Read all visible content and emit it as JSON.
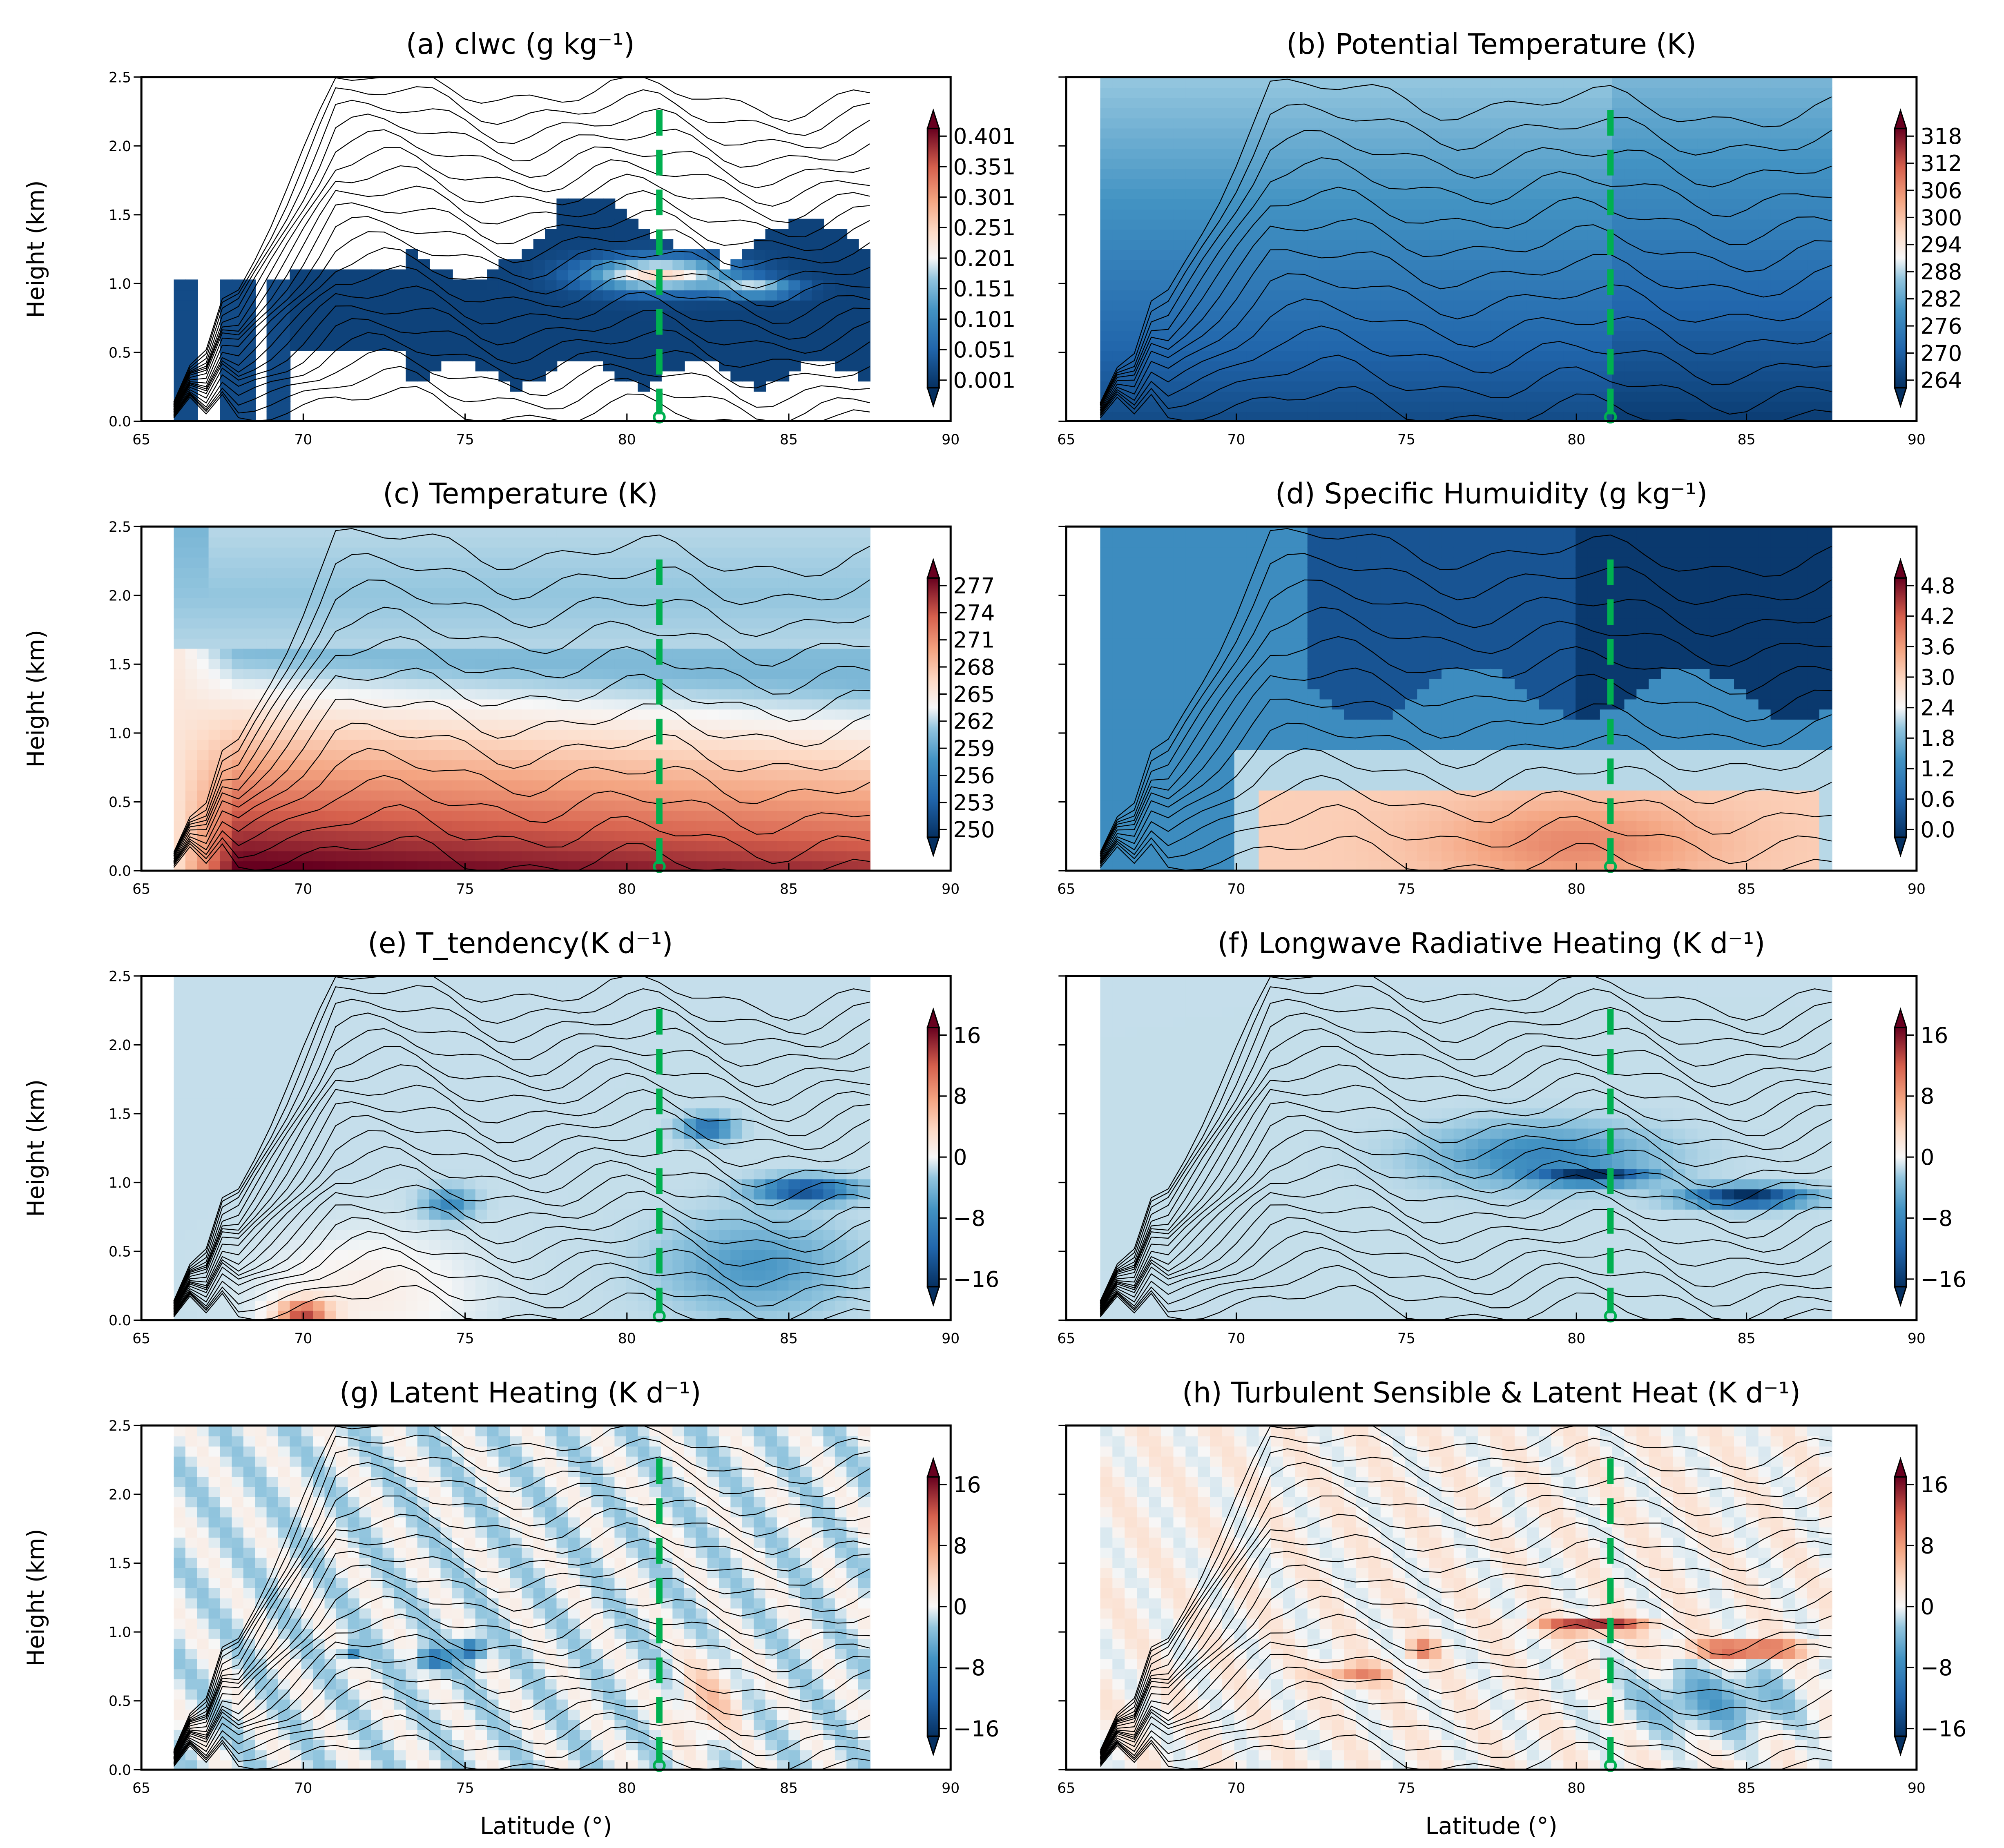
{
  "chart_data": [
    {
      "id": "a",
      "type": "heatmap",
      "title": "(a) clwc (g kg⁻¹)",
      "xlabel": "",
      "ylabel": "Height (km)",
      "xlim": [
        65,
        90
      ],
      "ylim": [
        0,
        2.5
      ],
      "xticks": [
        "65",
        "70",
        "75",
        "80",
        "85",
        "90"
      ],
      "yticks": [
        "0.0",
        "0.5",
        "1.0",
        "1.5",
        "2.0",
        "2.5"
      ],
      "colorbar_ticks": [
        "0.401",
        "0.351",
        "0.301",
        "0.251",
        "0.201",
        "0.151",
        "0.101",
        "0.051",
        "0.001"
      ],
      "field": "clwc",
      "marker_latitude": 81
    },
    {
      "id": "b",
      "type": "heatmap",
      "title": "(b) Potential Temperature (K)",
      "xlabel": "",
      "ylabel": "",
      "xlim": [
        65,
        90
      ],
      "ylim": [
        0,
        2.5
      ],
      "xticks": [
        "65",
        "70",
        "75",
        "80",
        "85",
        "90"
      ],
      "yticks": [],
      "colorbar_ticks": [
        "318",
        "312",
        "306",
        "300",
        "294",
        "288",
        "282",
        "276",
        "270",
        "264"
      ],
      "field": "theta",
      "marker_latitude": 81
    },
    {
      "id": "c",
      "type": "heatmap",
      "title": "(c) Temperature (K)",
      "xlabel": "",
      "ylabel": "Height (km)",
      "xlim": [
        65,
        90
      ],
      "ylim": [
        0,
        2.5
      ],
      "xticks": [
        "65",
        "70",
        "75",
        "80",
        "85",
        "90"
      ],
      "yticks": [
        "0.0",
        "0.5",
        "1.0",
        "1.5",
        "2.0",
        "2.5"
      ],
      "colorbar_ticks": [
        "277",
        "274",
        "271",
        "268",
        "265",
        "262",
        "259",
        "256",
        "253",
        "250"
      ],
      "field": "temp",
      "marker_latitude": 81
    },
    {
      "id": "d",
      "type": "heatmap",
      "title": "(d) Specific Humuidity (g kg⁻¹)",
      "xlabel": "",
      "ylabel": "",
      "xlim": [
        65,
        90
      ],
      "ylim": [
        0,
        2.5
      ],
      "xticks": [
        "65",
        "70",
        "75",
        "80",
        "85",
        "90"
      ],
      "yticks": [],
      "colorbar_ticks": [
        "4.8",
        "4.2",
        "3.6",
        "3.0",
        "2.4",
        "1.8",
        "1.2",
        "0.6",
        "0.0"
      ],
      "field": "q",
      "marker_latitude": 81
    },
    {
      "id": "e",
      "type": "heatmap",
      "title": "(e) T_tendency(K d⁻¹)",
      "xlabel": "",
      "ylabel": "Height (km)",
      "xlim": [
        65,
        90
      ],
      "ylim": [
        0,
        2.5
      ],
      "xticks": [
        "65",
        "70",
        "75",
        "80",
        "85",
        "90"
      ],
      "yticks": [
        "0.0",
        "0.5",
        "1.0",
        "1.5",
        "2.0",
        "2.5"
      ],
      "colorbar_ticks": [
        "16",
        "8",
        "0",
        "−8",
        "−16"
      ],
      "field": "ttend",
      "marker_latitude": 81
    },
    {
      "id": "f",
      "type": "heatmap",
      "title": "(f) Longwave Radiative Heating (K d⁻¹)",
      "xlabel": "",
      "ylabel": "",
      "xlim": [
        65,
        90
      ],
      "ylim": [
        0,
        2.5
      ],
      "xticks": [
        "65",
        "70",
        "75",
        "80",
        "85",
        "90"
      ],
      "yticks": [],
      "colorbar_ticks": [
        "16",
        "8",
        "0",
        "−8",
        "−16"
      ],
      "field": "lw",
      "marker_latitude": 81
    },
    {
      "id": "g",
      "type": "heatmap",
      "title": "(g) Latent Heating (K d⁻¹)",
      "xlabel": "Latitude (°)",
      "ylabel": "Height (km)",
      "xlim": [
        65,
        90
      ],
      "ylim": [
        0,
        2.5
      ],
      "xticks": [
        "65",
        "70",
        "75",
        "80",
        "85",
        "90"
      ],
      "yticks": [
        "0.0",
        "0.5",
        "1.0",
        "1.5",
        "2.0",
        "2.5"
      ],
      "colorbar_ticks": [
        "16",
        "8",
        "0",
        "−8",
        "−16"
      ],
      "field": "lh",
      "marker_latitude": 81
    },
    {
      "id": "h",
      "type": "heatmap",
      "title": "(h) Turbulent Sensible & Latent Heat (K d⁻¹)",
      "xlabel": "Latitude (°)",
      "ylabel": "",
      "xlim": [
        65,
        90
      ],
      "ylim": [
        0,
        2.5
      ],
      "xticks": [
        "65",
        "70",
        "75",
        "80",
        "85",
        "90"
      ],
      "yticks": [],
      "colorbar_ticks": [
        "16",
        "8",
        "0",
        "−8",
        "−16"
      ],
      "field": "turb",
      "marker_latitude": 81
    }
  ],
  "colors": {
    "marker": "#00b050",
    "contour": "#000000"
  }
}
